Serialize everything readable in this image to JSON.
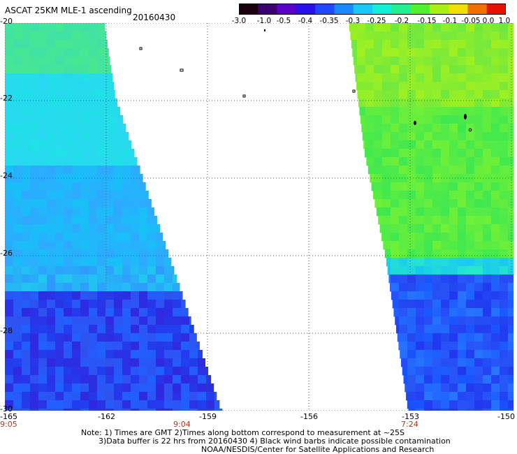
{
  "header": {
    "title": "ASCAT 25KM MLE-1 ascending",
    "date": "20160430"
  },
  "colorbar": {
    "tick_labels": [
      "-3.0",
      "-1.0",
      "-0.5",
      "-0.4",
      "-0.35",
      "-0.3",
      "-0.25",
      "-0.2",
      "-0.15",
      "-0.1",
      "-0.05",
      "0.0",
      "1.0"
    ],
    "colors": [
      "#1a0010",
      "#3b0070",
      "#5a00c8",
      "#2a10e8",
      "#2048ff",
      "#1a88ff",
      "#18c8f8",
      "#10f0d8",
      "#20f090",
      "#50f030",
      "#a8f010",
      "#f0e000",
      "#f07000",
      "#e81000"
    ]
  },
  "map": {
    "lat_labels": [
      "-20",
      "-22",
      "-24",
      "-26",
      "-28",
      "-30"
    ],
    "lon_labels": [
      "-165",
      "-162",
      "-159",
      "-156",
      "-153",
      "-150"
    ],
    "time_labels": [
      "9:05",
      "9:04",
      "7:24"
    ],
    "background": "#ffffff",
    "grid_color": "#555555"
  },
  "notes": {
    "line1": "Note: 1) Times are GMT 2)Times along bottom correspond to measurement at ~25S",
    "line2": "3)Data buffer is 22 hrs from 20160430 4) Black wind barbs indicate possible contamination",
    "line3": "NOAA/NESDIS/Center for Satellite Applications and Research"
  }
}
